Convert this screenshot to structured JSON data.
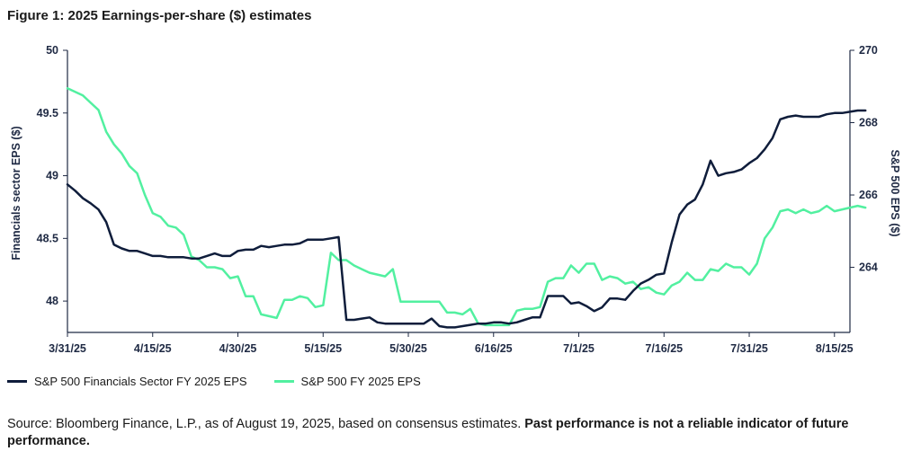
{
  "figure_title": "Figure 1: 2025 Earnings-per-share ($) estimates",
  "source_text": "Source: Bloomberg Finance, L.P., as of August 19, 2025, based on consensus estimates.",
  "source_bold": "Past performance is not a reliable indicator of future performance.",
  "colors": {
    "financials": "#0f1d3b",
    "sp500": "#52f0a0"
  },
  "chart_data": {
    "type": "line",
    "title": "Figure 1: 2025 Earnings-per-share ($) estimates",
    "xlabel": "",
    "x_tick_labels": [
      "3/31/25",
      "4/15/25",
      "4/30/25",
      "5/15/25",
      "5/30/25",
      "6/16/25",
      "7/1/25",
      "7/16/25",
      "7/31/25",
      "8/15/25"
    ],
    "x_tick_positions": [
      0,
      11,
      22,
      33,
      44,
      55,
      66,
      77,
      88,
      99
    ],
    "x_range": [
      0,
      101
    ],
    "ylabel_left": "Financials sector EPS ($)",
    "ylim_left": [
      47.75,
      50
    ],
    "yticks_left": [
      "50",
      "49.5",
      "49",
      "48.5",
      "48"
    ],
    "ylabel_right": "S&P 500 EPS ($)",
    "ylim_right": [
      262.2,
      270
    ],
    "yticks_right": [
      "270",
      "268",
      "266",
      "264"
    ],
    "legend_position": "bottom-left",
    "grid": false,
    "series": [
      {
        "name": "S&P 500 Financials Sector FY 2025 EPS",
        "axis": "left",
        "values": [
          48.93,
          48.88,
          48.82,
          48.78,
          48.73,
          48.63,
          48.45,
          48.42,
          48.4,
          48.4,
          48.38,
          48.36,
          48.36,
          48.35,
          48.35,
          48.35,
          48.34,
          48.34,
          48.36,
          48.38,
          48.36,
          48.36,
          48.4,
          48.41,
          48.41,
          48.44,
          48.43,
          48.44,
          48.45,
          48.45,
          48.46,
          48.49,
          48.49,
          48.49,
          48.5,
          48.51,
          47.85,
          47.85,
          47.86,
          47.87,
          47.83,
          47.82,
          47.82,
          47.82,
          47.82,
          47.82,
          47.82,
          47.86,
          47.8,
          47.79,
          47.79,
          47.8,
          47.81,
          47.82,
          47.82,
          47.83,
          47.83,
          47.82,
          47.83,
          47.85,
          47.87,
          47.87,
          48.04,
          48.04,
          48.04,
          47.98,
          47.99,
          47.96,
          47.92,
          47.95,
          48.02,
          48.02,
          48.01,
          48.08,
          48.14,
          48.17,
          48.21,
          48.22,
          48.47,
          48.69,
          48.77,
          48.81,
          48.93,
          49.12,
          49.0,
          49.02,
          49.03,
          49.05,
          49.1,
          49.14,
          49.21,
          49.3,
          49.45,
          49.47,
          49.48,
          49.47,
          49.47,
          49.47,
          49.49,
          49.5,
          49.5,
          49.51,
          49.52,
          49.52
        ]
      },
      {
        "name": "S&P 500 FY 2025 EPS",
        "axis": "right",
        "values": [
          268.95,
          268.85,
          268.75,
          268.55,
          268.35,
          267.75,
          267.4,
          267.15,
          266.8,
          266.6,
          266.0,
          265.5,
          265.4,
          265.15,
          265.1,
          264.9,
          264.3,
          264.2,
          264.0,
          264.0,
          263.95,
          263.7,
          263.75,
          263.2,
          263.2,
          262.7,
          262.65,
          262.6,
          263.1,
          263.1,
          263.2,
          263.15,
          262.9,
          262.95,
          264.4,
          264.2,
          264.2,
          264.05,
          263.95,
          263.85,
          263.8,
          263.75,
          263.95,
          263.05,
          263.05,
          263.05,
          263.05,
          263.05,
          263.05,
          262.75,
          262.75,
          262.7,
          262.85,
          262.45,
          262.4,
          262.4,
          262.4,
          262.4,
          262.8,
          262.85,
          262.85,
          262.9,
          263.6,
          263.7,
          263.7,
          264.05,
          263.85,
          264.1,
          264.1,
          263.65,
          263.75,
          263.7,
          263.55,
          263.6,
          263.4,
          263.45,
          263.3,
          263.25,
          263.5,
          263.6,
          263.85,
          263.65,
          263.65,
          263.95,
          263.9,
          264.1,
          264.0,
          264.0,
          263.8,
          264.1,
          264.8,
          265.1,
          265.55,
          265.6,
          265.5,
          265.6,
          265.5,
          265.55,
          265.7,
          265.55,
          265.6,
          265.65,
          265.7,
          265.65
        ]
      }
    ]
  }
}
